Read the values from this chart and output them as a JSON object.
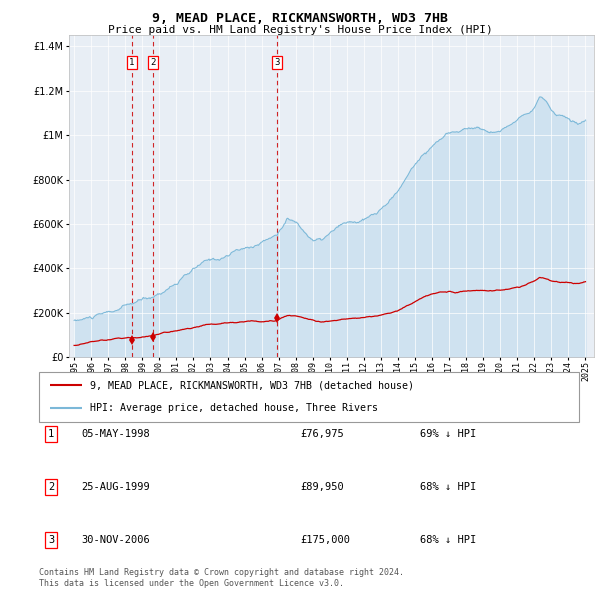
{
  "title": "9, MEAD PLACE, RICKMANSWORTH, WD3 7HB",
  "subtitle": "Price paid vs. HM Land Registry's House Price Index (HPI)",
  "legend_line1": "9, MEAD PLACE, RICKMANSWORTH, WD3 7HB (detached house)",
  "legend_line2": "HPI: Average price, detached house, Three Rivers",
  "footer_line1": "Contains HM Land Registry data © Crown copyright and database right 2024.",
  "footer_line2": "This data is licensed under the Open Government Licence v3.0.",
  "transactions": [
    {
      "num": 1,
      "date": "05-MAY-1998",
      "price": 76975,
      "price_str": "£76,975",
      "hpi_pct": "69% ↓ HPI"
    },
    {
      "num": 2,
      "date": "25-AUG-1999",
      "price": 89950,
      "price_str": "£89,950",
      "hpi_pct": "68% ↓ HPI"
    },
    {
      "num": 3,
      "date": "30-NOV-2006",
      "price": 175000,
      "price_str": "£175,000",
      "hpi_pct": "68% ↓ HPI"
    }
  ],
  "transaction_dates_decimal": [
    1998.37,
    1999.65,
    2006.92
  ],
  "transaction_prices": [
    76975,
    89950,
    175000
  ],
  "hpi_color": "#7bb8d8",
  "hpi_fill_color": "#cfe2f0",
  "price_color": "#cc0000",
  "dashed_line_color": "#cc0000",
  "plot_bg_color": "#e8eef5",
  "grid_color": "#ffffff",
  "ylim": [
    0,
    1450000
  ],
  "xlim_start": 1994.7,
  "xlim_end": 2025.5,
  "yticks": [
    0,
    200000,
    400000,
    600000,
    800000,
    1000000,
    1200000,
    1400000
  ],
  "ytick_labels": [
    "£0",
    "£200K",
    "£400K",
    "£600K",
    "£800K",
    "£1M",
    "£1.2M",
    "£1.4M"
  ]
}
